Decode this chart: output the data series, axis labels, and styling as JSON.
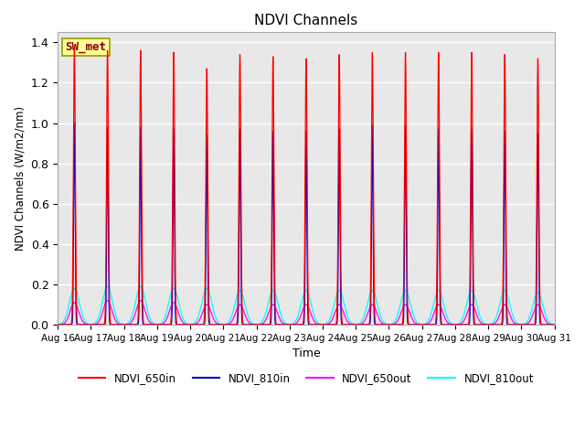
{
  "title": "NDVI Channels",
  "ylabel": "NDVI Channels (W/m2/nm)",
  "xlabel": "Time",
  "ylim": [
    0.0,
    1.45
  ],
  "yticks": [
    0.0,
    0.2,
    0.4,
    0.6,
    0.8,
    1.0,
    1.2,
    1.4
  ],
  "xtick_labels": [
    "Aug 16",
    "Aug 17",
    "Aug 18",
    "Aug 19",
    "Aug 20",
    "Aug 21",
    "Aug 22",
    "Aug 23",
    "Aug 24",
    "Aug 25",
    "Aug 26",
    "Aug 27",
    "Aug 28",
    "Aug 29",
    "Aug 30",
    "Aug 31"
  ],
  "series": {
    "NDVI_650in": {
      "color": "#ff0000"
    },
    "NDVI_810in": {
      "color": "#0000cc"
    },
    "NDVI_650out": {
      "color": "#ff00ff"
    },
    "NDVI_810out": {
      "color": "#00ffff"
    }
  },
  "peak_heights_650in": [
    1.38,
    1.36,
    1.36,
    1.35,
    1.27,
    1.34,
    1.33,
    1.32,
    1.34,
    1.35,
    1.35,
    1.35,
    1.35,
    1.34,
    1.32
  ],
  "peak_heights_810in": [
    1.0,
    0.98,
    0.98,
    0.97,
    0.94,
    0.97,
    0.96,
    0.96,
    0.97,
    0.99,
    0.99,
    0.97,
    0.97,
    0.96,
    0.95
  ],
  "peak_heights_650out": [
    0.11,
    0.12,
    0.12,
    0.11,
    0.1,
    0.1,
    0.1,
    0.1,
    0.1,
    0.1,
    0.1,
    0.1,
    0.1,
    0.1,
    0.1
  ],
  "peak_heights_810out": [
    0.18,
    0.19,
    0.19,
    0.18,
    0.18,
    0.17,
    0.17,
    0.17,
    0.17,
    0.17,
    0.17,
    0.17,
    0.17,
    0.17,
    0.16
  ],
  "annotation_text": "SW_met",
  "annotation_color": "#880000",
  "annotation_bg": "#ffff99",
  "background_color": "#e8e8e8",
  "grid_color": "#ffffff"
}
